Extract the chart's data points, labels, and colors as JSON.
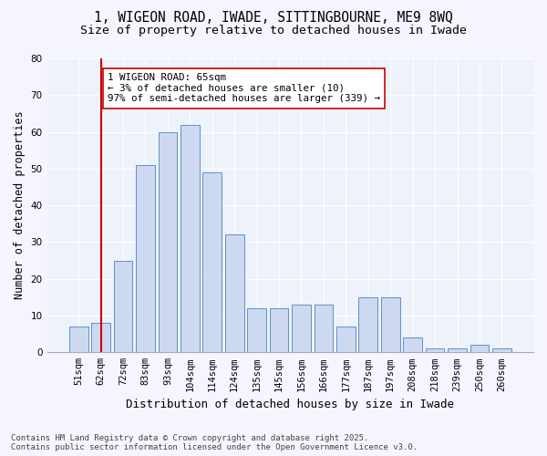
{
  "title1": "1, WIGEON ROAD, IWADE, SITTINGBOURNE, ME9 8WQ",
  "title2": "Size of property relative to detached houses in Iwade",
  "xlabel": "Distribution of detached houses by size in Iwade",
  "ylabel": "Number of detached properties",
  "categories": [
    "51sqm",
    "62sqm",
    "72sqm",
    "83sqm",
    "93sqm",
    "104sqm",
    "114sqm",
    "124sqm",
    "135sqm",
    "145sqm",
    "156sqm",
    "166sqm",
    "177sqm",
    "187sqm",
    "197sqm",
    "208sqm",
    "218sqm",
    "239sqm",
    "250sqm",
    "260sqm"
  ],
  "values": [
    7,
    8,
    25,
    51,
    60,
    62,
    49,
    32,
    12,
    12,
    13,
    13,
    7,
    15,
    15,
    4,
    1,
    1,
    2,
    1
  ],
  "bar_color": "#ccd9f0",
  "bar_edge_color": "#6090c8",
  "annotation_title": "1 WIGEON ROAD: 65sqm",
  "annotation_line1": "← 3% of detached houses are smaller (10)",
  "annotation_line2": "97% of semi-detached houses are larger (339) →",
  "vline_color": "#cc0000",
  "ylim": [
    0,
    80
  ],
  "yticks": [
    0,
    10,
    20,
    30,
    40,
    50,
    60,
    70,
    80
  ],
  "background_color": "#eef2fb",
  "fig_facecolor": "#f5f5ff",
  "footer1": "Contains HM Land Registry data © Crown copyright and database right 2025.",
  "footer2": "Contains public sector information licensed under the Open Government Licence v3.0.",
  "title_fontsize": 10.5,
  "subtitle_fontsize": 9.5,
  "tick_fontsize": 7.5,
  "ylabel_fontsize": 8.5,
  "xlabel_fontsize": 9,
  "footer_fontsize": 6.5,
  "ann_fontsize": 7.8
}
